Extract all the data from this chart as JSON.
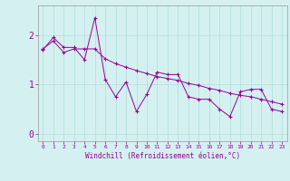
{
  "xlabel": "Windchill (Refroidissement éolien,°C)",
  "background_color": "#d4f0f0",
  "line_color": "#990099",
  "grid_color": "#b0dede",
  "xlim": [
    -0.5,
    23.5
  ],
  "ylim": [
    -0.15,
    2.6
  ],
  "yticks": [
    0,
    1,
    2
  ],
  "xticks": [
    0,
    1,
    2,
    3,
    4,
    5,
    6,
    7,
    8,
    9,
    10,
    11,
    12,
    13,
    14,
    15,
    16,
    17,
    18,
    19,
    20,
    21,
    22,
    23
  ],
  "series1_x": [
    0,
    1,
    2,
    3,
    4,
    5,
    6,
    7,
    8,
    9,
    10,
    11,
    12,
    13,
    14,
    15,
    16,
    17,
    18,
    19,
    20,
    21,
    22,
    23
  ],
  "series1_y": [
    1.7,
    1.95,
    1.75,
    1.75,
    1.5,
    2.35,
    1.1,
    0.75,
    1.05,
    0.45,
    0.8,
    1.25,
    1.2,
    1.2,
    0.75,
    0.7,
    0.7,
    0.5,
    0.35,
    0.85,
    0.9,
    0.9,
    0.5,
    0.45
  ],
  "series2_x": [
    0,
    1,
    2,
    3,
    4,
    5,
    6,
    7,
    8,
    9,
    10,
    11,
    12,
    13,
    14,
    15,
    16,
    17,
    18,
    19,
    20,
    21,
    22,
    23
  ],
  "series2_y": [
    1.72,
    1.88,
    1.65,
    1.72,
    1.72,
    1.72,
    1.52,
    1.42,
    1.35,
    1.28,
    1.22,
    1.16,
    1.12,
    1.08,
    1.02,
    0.98,
    0.92,
    0.88,
    0.82,
    0.78,
    0.75,
    0.7,
    0.65,
    0.6
  ]
}
